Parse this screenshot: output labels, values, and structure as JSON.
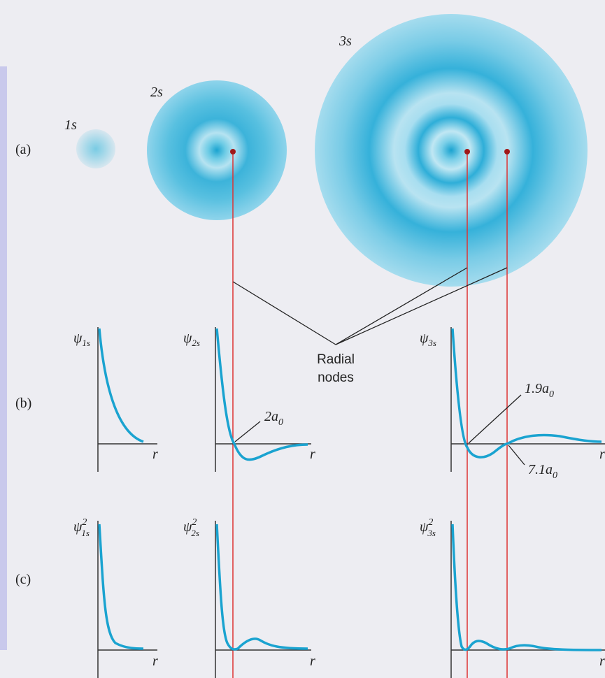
{
  "orbitals": [
    {
      "label": "1s"
    },
    {
      "label": "2s"
    },
    {
      "label": "3s"
    }
  ],
  "row_labels": [
    "(a)",
    "(b)",
    "(c)"
  ],
  "radial_nodes_label": [
    "Radial",
    "nodes"
  ],
  "wavefunction_plots": [
    {
      "symbol": "ψ",
      "subscript": "1s",
      "axis_label": "r"
    },
    {
      "symbol": "ψ",
      "subscript": "2s",
      "axis_label": "r"
    },
    {
      "symbol": "ψ",
      "subscript": "3s",
      "axis_label": "r"
    }
  ],
  "probability_plots": [
    {
      "symbol": "ψ",
      "superscript": "2",
      "subscript": "1s",
      "axis_label": "r"
    },
    {
      "symbol": "ψ",
      "superscript": "2",
      "subscript": "2s",
      "axis_label": "r"
    },
    {
      "symbol": "ψ",
      "superscript": "2",
      "subscript": "3s",
      "axis_label": "r"
    }
  ],
  "node_labels": [
    {
      "coefficient": "2a",
      "subscript": "0"
    },
    {
      "coefficient": "1.9a",
      "subscript": "0"
    },
    {
      "coefficient": "7.1a",
      "subscript": "0"
    }
  ]
}
